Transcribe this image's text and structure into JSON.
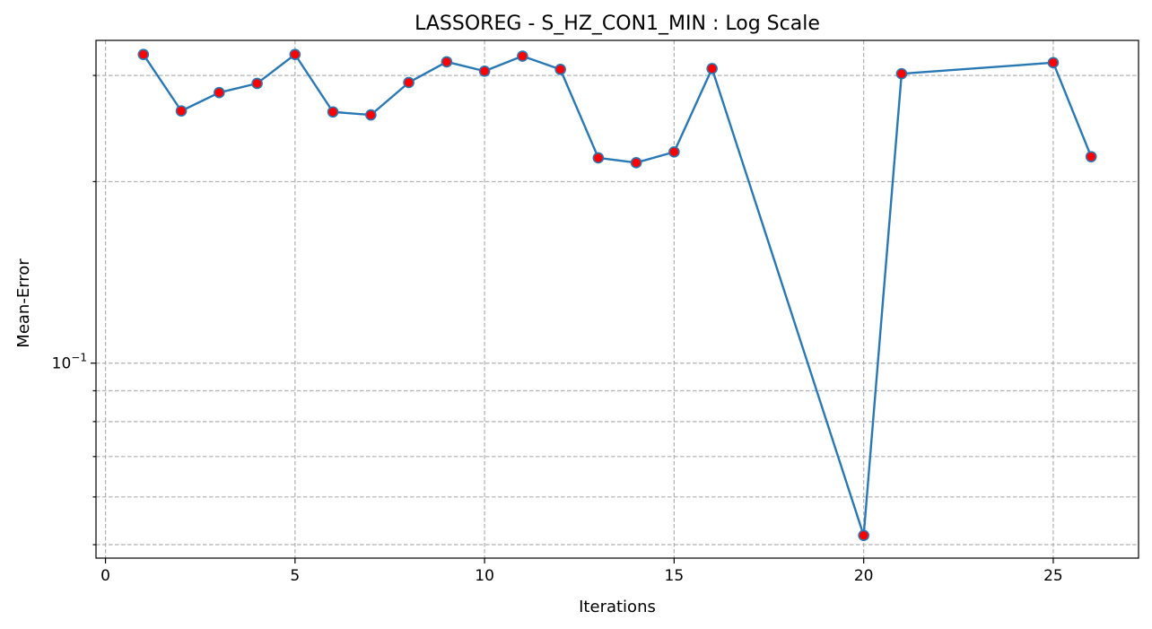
{
  "chart_data": {
    "type": "line",
    "title": "LASSOREG - S_HZ_CON1_MIN : Log Scale",
    "xlabel": "Iterations",
    "ylabel": "Mean-Error",
    "yscale": "log",
    "grid": true,
    "xlim": [
      -0.25,
      27.25
    ],
    "ylim": [
      0.0475,
      0.343
    ],
    "x_ticks": [
      0,
      5,
      10,
      15,
      20,
      25
    ],
    "x_tick_labels": [
      "0",
      "5",
      "10",
      "15",
      "20",
      "25"
    ],
    "y_major_ticks": [
      0.1
    ],
    "y_major_tick_labels": [
      {
        "base": "10",
        "exponent": "−1"
      }
    ],
    "y_minor_ticks": [
      0.05,
      0.06,
      0.07,
      0.08,
      0.09,
      0.2,
      0.3
    ],
    "series": [
      {
        "name": "Mean-Error",
        "line_color": "#2878b5",
        "marker_color": "#ff0000",
        "marker_edge_color": "#2878b5",
        "x": [
          1,
          2,
          3,
          4,
          5,
          6,
          7,
          8,
          9,
          10,
          11,
          12,
          13,
          14,
          15,
          16,
          20,
          21,
          25,
          26
        ],
        "values": [
          0.325,
          0.262,
          0.281,
          0.291,
          0.325,
          0.261,
          0.258,
          0.292,
          0.316,
          0.305,
          0.323,
          0.307,
          0.219,
          0.215,
          0.224,
          0.308,
          0.0518,
          0.302,
          0.315,
          0.22
        ]
      }
    ]
  }
}
